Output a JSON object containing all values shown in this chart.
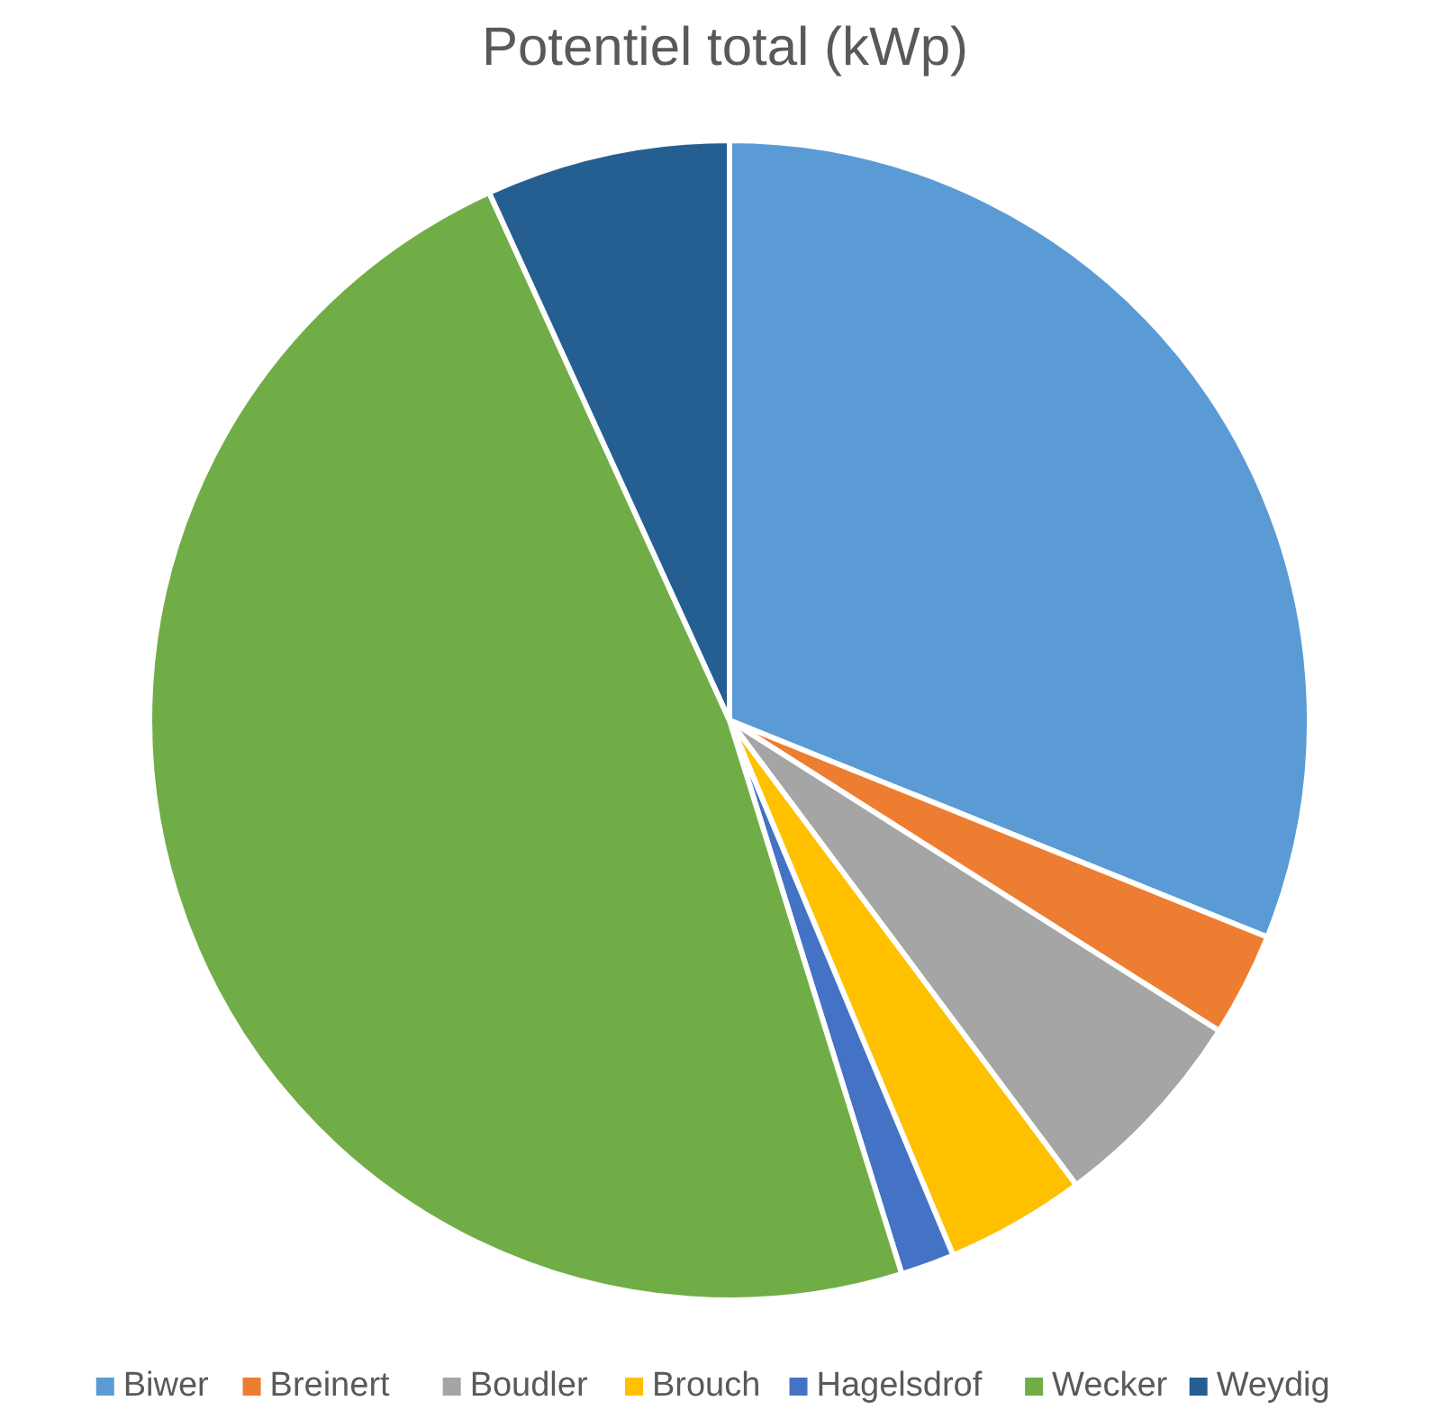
{
  "chart_data": {
    "type": "pie",
    "title": "Potentiel total (kWp)",
    "categories": [
      "Biwer",
      "Breinert",
      "Boudler",
      "Brouch",
      "Hagelsdrof",
      "Wecker",
      "Weydig"
    ],
    "values": [
      31.1,
      2.9,
      5.8,
      3.9,
      1.5,
      48.0,
      6.8
    ],
    "colors": [
      "#5b9bd5",
      "#ed7d31",
      "#a5a5a5",
      "#ffc000",
      "#4472c4",
      "#70ad47",
      "#255e91"
    ],
    "legend": "bottom"
  }
}
